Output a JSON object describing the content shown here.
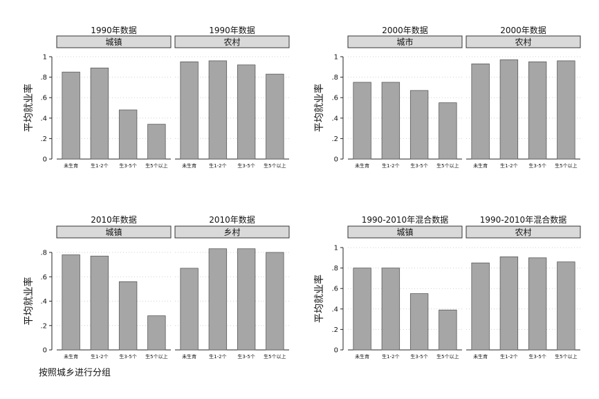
{
  "note": "按照城乡进行分组",
  "colors": {
    "bar": "#a6a6a6",
    "bar_stroke": "#5a5a5a",
    "strip": "#d9d9d9",
    "grid": "#cfcfcf",
    "axis": "#222222"
  },
  "chart_data": [
    {
      "type": "bar",
      "ylabel": "平均就业率",
      "ylim": [
        0,
        1
      ],
      "yticks": [
        "0",
        ".2",
        ".4",
        ".6",
        ".8",
        "1"
      ],
      "grid": true,
      "panels": [
        {
          "title": "1990年数据",
          "strip": "城镇",
          "categories": [
            "未生育",
            "生1-2个",
            "生3-5个",
            "生5个以上"
          ],
          "values": [
            0.85,
            0.89,
            0.48,
            0.34
          ]
        },
        {
          "title": "1990年数据",
          "strip": "农村",
          "categories": [
            "未生育",
            "生1-2个",
            "生3-5个",
            "生5个以上"
          ],
          "values": [
            0.95,
            0.96,
            0.92,
            0.83
          ]
        }
      ]
    },
    {
      "type": "bar",
      "ylabel": "平均就业率",
      "ylim": [
        0,
        1
      ],
      "yticks": [
        "0",
        ".2",
        ".4",
        ".6",
        ".8",
        "1"
      ],
      "grid": true,
      "panels": [
        {
          "title": "2000年数据",
          "strip": "城市",
          "categories": [
            "未生育",
            "生1-2个",
            "生3-5个",
            "生5个以上"
          ],
          "values": [
            0.75,
            0.75,
            0.67,
            0.55
          ]
        },
        {
          "title": "2000年数据",
          "strip": "农村",
          "categories": [
            "未生育",
            "生1-2个",
            "生3-5个",
            "生5个以上"
          ],
          "values": [
            0.93,
            0.97,
            0.95,
            0.96
          ]
        }
      ]
    },
    {
      "type": "bar",
      "ylabel": "平均就业率",
      "ylim": [
        0,
        0.8
      ],
      "yticks": [
        "0",
        ".2",
        ".4",
        ".6",
        ".8"
      ],
      "grid": true,
      "panels": [
        {
          "title": "2010年数据",
          "strip": "城镇",
          "categories": [
            "未生育",
            "生1-2个",
            "生3-5个",
            "生5个以上"
          ],
          "values": [
            0.78,
            0.77,
            0.56,
            0.28
          ]
        },
        {
          "title": "2010年数据",
          "strip": "乡村",
          "categories": [
            "未生育",
            "生1-2个",
            "生3-5个",
            "生5个以上"
          ],
          "values": [
            0.67,
            0.83,
            0.83,
            0.8
          ]
        }
      ]
    },
    {
      "type": "bar",
      "ylabel": "平均就业率",
      "ylim": [
        0,
        1
      ],
      "yticks": [
        "0",
        ".2",
        ".4",
        ".6",
        ".8",
        "1"
      ],
      "grid": true,
      "panels": [
        {
          "title": "1990-2010年混合数据",
          "strip": "城镇",
          "categories": [
            "未生育",
            "生1-2个",
            "生3-5个",
            "生5个以上"
          ],
          "values": [
            0.8,
            0.8,
            0.55,
            0.39
          ]
        },
        {
          "title": "1990-2010年混合数据",
          "strip": "农村",
          "categories": [
            "未生育",
            "生1-2个",
            "生3-5个",
            "生5个以上"
          ],
          "values": [
            0.85,
            0.91,
            0.9,
            0.86
          ]
        }
      ]
    }
  ]
}
